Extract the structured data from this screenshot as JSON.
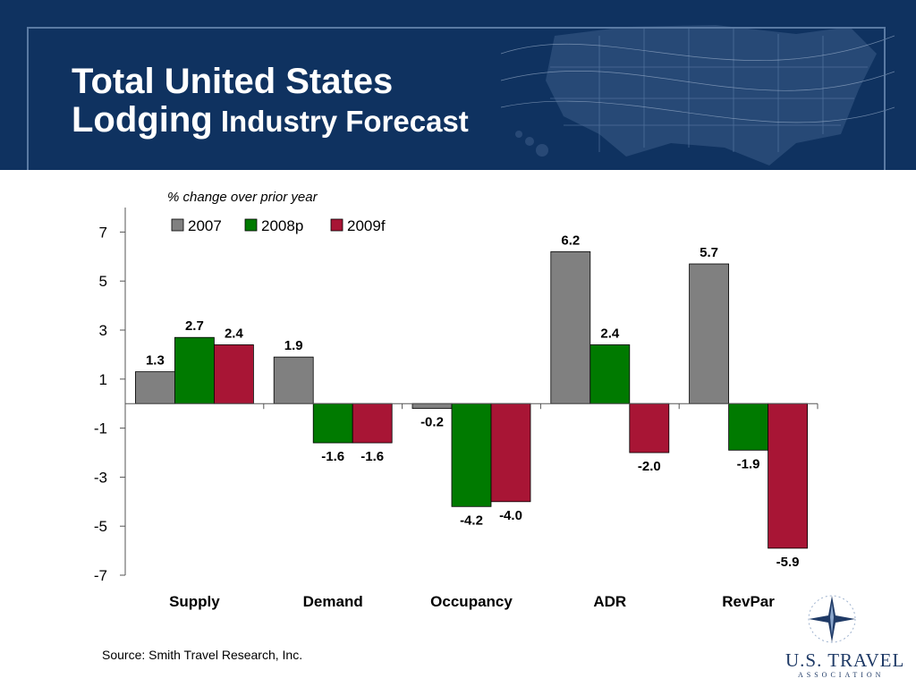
{
  "header": {
    "title_line1": "Total United States",
    "title_line2a": "Lodging",
    "title_line2b": " Industry Forecast"
  },
  "colors": {
    "header_bg": "#0f3260",
    "s2007": "#808080",
    "s2008p": "#007a00",
    "s2009f": "#a81535"
  },
  "chart_data": {
    "type": "bar",
    "subtitle": "%  change over prior year",
    "categories": [
      "Supply",
      "Demand",
      "Occupancy",
      "ADR",
      "RevPar"
    ],
    "series": [
      {
        "name": "2007",
        "values": [
          1.3,
          1.9,
          -0.2,
          6.2,
          5.7
        ]
      },
      {
        "name": "2008p",
        "values": [
          2.7,
          -1.6,
          -4.2,
          2.4,
          -1.9
        ]
      },
      {
        "name": "2009f",
        "values": [
          2.4,
          -1.6,
          -4.0,
          -2.0,
          -5.9
        ]
      }
    ],
    "data_labels": [
      [
        "1.3",
        "1.9",
        "-0.2",
        "6.2",
        "5.7"
      ],
      [
        "2.7",
        "-1.6",
        "-4.2",
        "2.4",
        "-1.9"
      ],
      [
        "2.4",
        "-1.6",
        "-4.0",
        "-2.0",
        "-5.9"
      ]
    ],
    "ylim": [
      -7,
      8
    ],
    "yticks": [
      7,
      5,
      3,
      1,
      -1,
      -3,
      -5,
      -7
    ],
    "grid": false,
    "legend": "top-left"
  },
  "footer": {
    "source": "Source:  Smith Travel Research, Inc.",
    "logo_name": "U.S. TRAVEL",
    "logo_sub": "ASSOCIATION"
  }
}
